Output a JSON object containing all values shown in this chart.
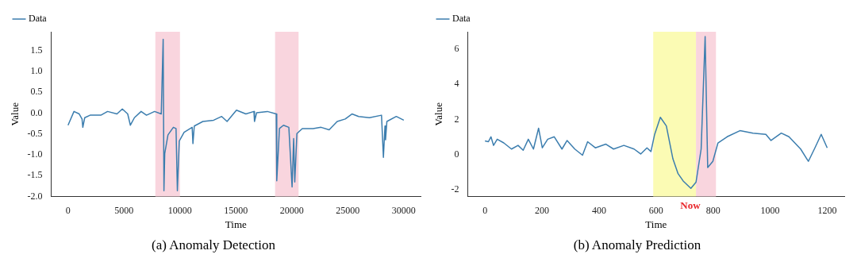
{
  "chart_data": [
    {
      "type": "line",
      "title": "(a) Anomaly Detection",
      "xlabel": "Time",
      "ylabel": "Value",
      "legend": "top left",
      "grid": false,
      "marker": "none",
      "xlim": [
        -1500,
        31500
      ],
      "xticks": [
        0,
        5000,
        10000,
        15000,
        20000,
        25000,
        30000
      ],
      "ylim": [
        -2.0,
        1.95
      ],
      "yticks": [
        {
          "value": -2,
          "label": "-2.0"
        },
        -1.5,
        {
          "value": -1,
          "label": "-1.0"
        },
        -0.5,
        {
          "value": 0,
          "label": "0.0"
        },
        0.5,
        {
          "value": 1,
          "label": "1.0"
        },
        1.5
      ],
      "bands": [
        {
          "axis": "x",
          "from": 7800,
          "to": 10000,
          "color": "#f9d5de"
        },
        {
          "axis": "x",
          "from": 18500,
          "to": 20600,
          "color": "#f9d5de"
        }
      ],
      "series": [
        {
          "name": "Data",
          "color": "#3b7dae",
          "x": [
            0,
            530,
            1000,
            1250,
            1320,
            1490,
            1970,
            2930,
            3530,
            4370,
            4850,
            5330,
            5570,
            5930,
            6530,
            7010,
            7730,
            8330,
            8500,
            8570,
            8640,
            8930,
            9410,
            9650,
            9770,
            9940,
            10370,
            11090,
            11160,
            11280,
            12050,
            13010,
            13730,
            14210,
            15050,
            15890,
            16610,
            16660,
            16850,
            17810,
            18600,
            18650,
            18890,
            19250,
            19730,
            20020,
            20160,
            20260,
            20450,
            20930,
            21890,
            22610,
            23330,
            24050,
            24770,
            25370,
            25970,
            26930,
            28010,
            28180,
            28320,
            28370,
            28490,
            29330,
            30000
          ],
          "values": [
            -0.29,
            0.04,
            -0.02,
            -0.14,
            -0.34,
            -0.11,
            -0.05,
            -0.05,
            0.04,
            -0.02,
            0.1,
            -0.02,
            -0.29,
            -0.11,
            0.04,
            -0.05,
            0.04,
            -0.02,
            1.77,
            -1.86,
            -0.97,
            -0.52,
            -0.34,
            -0.37,
            -1.86,
            -0.67,
            -0.46,
            -0.34,
            -0.73,
            -0.31,
            -0.2,
            -0.17,
            -0.08,
            -0.2,
            0.07,
            -0.02,
            0.04,
            -0.2,
            0.01,
            0.04,
            -0.02,
            -1.62,
            -0.37,
            -0.29,
            -0.34,
            -1.77,
            -0.61,
            -1.65,
            -0.49,
            -0.37,
            -0.37,
            -0.34,
            -0.4,
            -0.2,
            -0.14,
            -0.02,
            -0.08,
            -0.11,
            -0.05,
            -1.06,
            -0.31,
            -0.64,
            -0.2,
            -0.08,
            -0.17
          ]
        }
      ]
    },
    {
      "type": "line",
      "title": "(b) Anomaly Prediction",
      "xlabel": "Time",
      "ylabel": "Value",
      "legend": "top left",
      "grid": false,
      "marker": "none",
      "xlim": [
        -60,
        1260
      ],
      "xticks": [
        0,
        200,
        400,
        600,
        800,
        1000,
        1200
      ],
      "ylim": [
        -2.4,
        7
      ],
      "yticks": [
        -2,
        0,
        2,
        4,
        6
      ],
      "bands": [
        {
          "axis": "x",
          "from": 590,
          "to": 740,
          "color": "#fbfbb4"
        },
        {
          "axis": "x",
          "from": 740,
          "to": 810,
          "color": "#f9d5de"
        }
      ],
      "annotations": [
        {
          "text": "Now",
          "x": 720,
          "y": -2.4
        }
      ],
      "series": [
        {
          "name": "Data",
          "color": "#3b7dae",
          "x": [
            0,
            12,
            21,
            30,
            43,
            66,
            93,
            116,
            134,
            152,
            170,
            188,
            201,
            220,
            243,
            270,
            288,
            315,
            342,
            360,
            387,
            424,
            451,
            487,
            523,
            546,
            568,
            582,
            595,
            615,
            636,
            659,
            677,
            695,
            722,
            740,
            758,
            772,
            781,
            799,
            817,
            849,
            894,
            940,
            985,
            1003,
            1039,
            1066,
            1107,
            1134,
            1157,
            1179,
            1200
          ],
          "values": [
            0.77,
            0.73,
            1.01,
            0.52,
            0.87,
            0.66,
            0.31,
            0.52,
            0.24,
            0.87,
            0.31,
            1.5,
            0.38,
            0.87,
            1.01,
            0.31,
            0.8,
            0.31,
            -0.04,
            0.73,
            0.38,
            0.59,
            0.31,
            0.52,
            0.31,
            0.03,
            0.38,
            0.17,
            1.15,
            2.12,
            1.63,
            -0.25,
            -1.09,
            -1.51,
            -1.93,
            -1.58,
            0.31,
            6.73,
            -0.74,
            -0.39,
            0.66,
            1.01,
            1.36,
            1.22,
            1.15,
            0.8,
            1.22,
            1.01,
            0.31,
            -0.39,
            0.38,
            1.15,
            0.38
          ]
        }
      ]
    }
  ]
}
